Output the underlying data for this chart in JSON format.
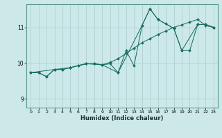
{
  "xlabel": "Humidex (Indice chaleur)",
  "bg_color": "#cde8e8",
  "grid_color": "#aacece",
  "line_color": "#1a7060",
  "xlim": [
    -0.5,
    23.5
  ],
  "ylim": [
    8.75,
    11.65
  ],
  "yticks": [
    9,
    10,
    11
  ],
  "xticks": [
    0,
    1,
    2,
    3,
    4,
    5,
    6,
    7,
    8,
    9,
    10,
    11,
    12,
    13,
    14,
    15,
    16,
    17,
    18,
    19,
    20,
    21,
    22,
    23
  ],
  "series1": [
    [
      0,
      9.73
    ],
    [
      1,
      9.73
    ],
    [
      2,
      9.62
    ],
    [
      3,
      9.82
    ],
    [
      4,
      9.82
    ],
    [
      5,
      9.87
    ],
    [
      6,
      9.93
    ],
    [
      7,
      9.98
    ],
    [
      8,
      9.98
    ],
    [
      9,
      9.95
    ],
    [
      10,
      9.98
    ],
    [
      11,
      9.73
    ],
    [
      12,
      10.35
    ],
    [
      13,
      9.92
    ],
    [
      14,
      11.05
    ],
    [
      15,
      11.52
    ],
    [
      16,
      11.22
    ],
    [
      17,
      11.1
    ],
    [
      18,
      10.97
    ],
    [
      19,
      10.35
    ],
    [
      20,
      10.35
    ],
    [
      21,
      11.08
    ],
    [
      22,
      11.08
    ],
    [
      23,
      11.0
    ]
  ],
  "series2": [
    [
      0,
      9.73
    ],
    [
      1,
      9.73
    ],
    [
      2,
      9.62
    ],
    [
      3,
      9.82
    ],
    [
      4,
      9.82
    ],
    [
      5,
      9.87
    ],
    [
      6,
      9.93
    ],
    [
      7,
      9.98
    ],
    [
      8,
      9.98
    ],
    [
      9,
      9.95
    ],
    [
      10,
      10.02
    ],
    [
      11,
      10.12
    ],
    [
      12,
      10.27
    ],
    [
      13,
      10.42
    ],
    [
      14,
      10.57
    ],
    [
      15,
      10.68
    ],
    [
      16,
      10.8
    ],
    [
      17,
      10.9
    ],
    [
      18,
      11.0
    ],
    [
      19,
      11.07
    ],
    [
      20,
      11.15
    ],
    [
      21,
      11.22
    ],
    [
      22,
      11.05
    ],
    [
      23,
      11.0
    ]
  ],
  "series3": [
    [
      0,
      9.73
    ],
    [
      3,
      9.82
    ],
    [
      5,
      9.87
    ],
    [
      7,
      9.98
    ],
    [
      9,
      9.95
    ],
    [
      11,
      9.73
    ],
    [
      14,
      11.05
    ],
    [
      15,
      11.52
    ],
    [
      16,
      11.22
    ],
    [
      18,
      10.97
    ],
    [
      19,
      10.35
    ],
    [
      21,
      11.08
    ],
    [
      22,
      11.08
    ],
    [
      23,
      11.0
    ]
  ]
}
